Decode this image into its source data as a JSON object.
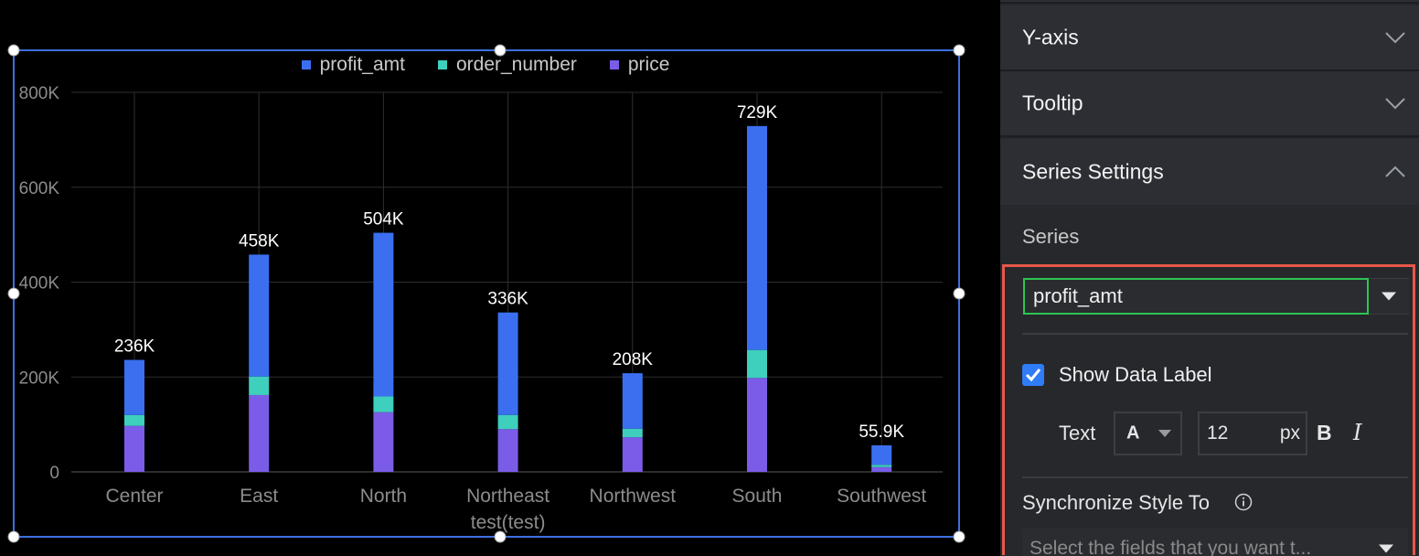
{
  "chart_data": {
    "type": "bar",
    "stacked": true,
    "categories": [
      "Center",
      "East",
      "North",
      "Northeast test(test)",
      "Northwest",
      "South",
      "Southwest"
    ],
    "category_lines": [
      [
        "Center"
      ],
      [
        "East"
      ],
      [
        "North"
      ],
      [
        "Northeast",
        "test(test)"
      ],
      [
        "Northwest"
      ],
      [
        "South"
      ],
      [
        "Southwest"
      ]
    ],
    "series": [
      {
        "name": "price",
        "color": "#7a5ce8",
        "values": [
          97000,
          162000,
          126000,
          90000,
          73000,
          198000,
          10000
        ]
      },
      {
        "name": "order_number",
        "color": "#3ecfbd",
        "values": [
          23000,
          39000,
          33000,
          30000,
          18000,
          59000,
          5000
        ]
      },
      {
        "name": "profit_amt",
        "color": "#3b6ff0",
        "values": [
          116000,
          257000,
          345000,
          216000,
          117000,
          472000,
          40900
        ]
      }
    ],
    "legend_order": [
      "profit_amt",
      "order_number",
      "price"
    ],
    "data_labels": [
      "236K",
      "458K",
      "504K",
      "336K",
      "208K",
      "729K",
      "55.9K"
    ],
    "yticks": [
      0,
      200000,
      400000,
      600000,
      800000
    ],
    "ytick_labels": [
      "0",
      "200K",
      "400K",
      "600K",
      "800K"
    ],
    "ylim": [
      0,
      800000
    ],
    "grid": true,
    "legend_position": "top-center"
  },
  "panel": {
    "sections": [
      {
        "title": "Y-axis",
        "expanded": false
      },
      {
        "title": "Tooltip",
        "expanded": false
      },
      {
        "title": "Series Settings",
        "expanded": true
      }
    ],
    "series_label": "Series",
    "series_value": "profit_amt",
    "show_data_label": "Show Data Label",
    "show_data_label_checked": true,
    "text_label": "Text",
    "font_value": "A",
    "font_size": "12",
    "font_unit": "px",
    "bold_label": "B",
    "italic_label": "I",
    "sync_label": "Synchronize Style To",
    "sync_placeholder": "Select the fields that you want t..."
  },
  "colors": {
    "accent": "#2f7cf6",
    "highlight": "#e8574a",
    "select_border": "#2ec455",
    "selection_frame": "#3d6fe0"
  }
}
